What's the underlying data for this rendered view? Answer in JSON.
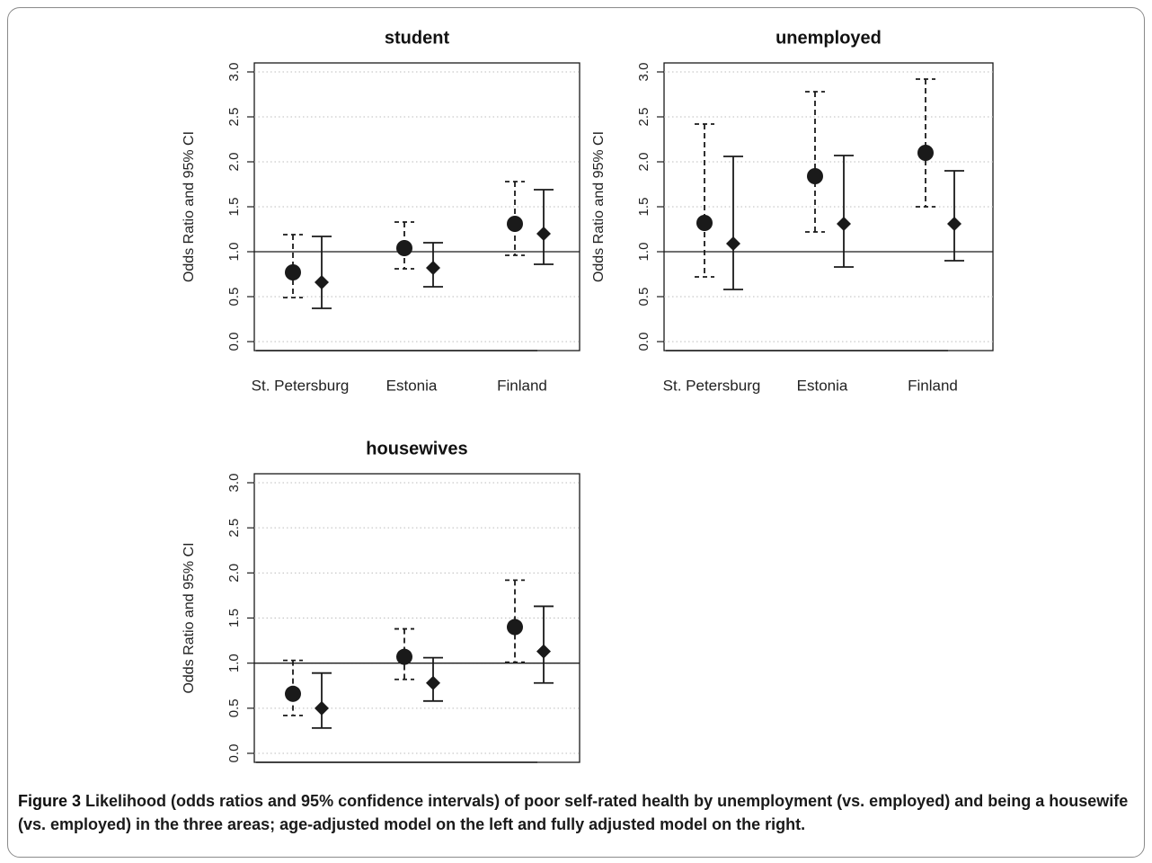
{
  "caption": {
    "label": "Figure 3",
    "text": "Likelihood (odds ratios and 95% confidence intervals) of poor self-rated health by unemployment (vs. employed) and being a housewife (vs. employed) in the three areas; age-adjusted model on the left and fully adjusted model on the right."
  },
  "colors": {
    "ink": "#1a1a1a",
    "grid": "#bdbdbd",
    "frame": "#8a8a8a"
  },
  "chart_data": [
    {
      "type": "scatter",
      "title": "student",
      "ylabel": "Odds Ratio and 95% CI",
      "categories": [
        "St. Petersburg",
        "Estonia",
        "Finland"
      ],
      "ylim": [
        0,
        3
      ],
      "yticks": [
        "0.0",
        "0.5",
        "1.0",
        "1.5",
        "2.0",
        "2.5",
        "3.0"
      ],
      "reference_line": 1.0,
      "grid": "horizontal dotted",
      "series": [
        {
          "marker": "circle",
          "ci_style": "dashed",
          "values": [
            0.77,
            1.04,
            1.31
          ],
          "lower": [
            0.49,
            0.81,
            0.96
          ],
          "upper": [
            1.19,
            1.33,
            1.78
          ]
        },
        {
          "marker": "diamond",
          "ci_style": "solid",
          "values": [
            0.66,
            0.82,
            1.2
          ],
          "lower": [
            0.37,
            0.61,
            0.86
          ],
          "upper": [
            1.17,
            1.1,
            1.69
          ]
        }
      ]
    },
    {
      "type": "scatter",
      "title": "unemployed",
      "ylabel": "Odds Ratio and 95% CI",
      "categories": [
        "St. Petersburg",
        "Estonia",
        "Finland"
      ],
      "ylim": [
        0,
        3
      ],
      "yticks": [
        "0.0",
        "0.5",
        "1.0",
        "1.5",
        "2.0",
        "2.5",
        "3.0"
      ],
      "reference_line": 1.0,
      "grid": "horizontal dotted",
      "series": [
        {
          "marker": "circle",
          "ci_style": "dashed",
          "values": [
            1.32,
            1.84,
            2.1
          ],
          "lower": [
            0.72,
            1.22,
            1.5
          ],
          "upper": [
            2.42,
            2.78,
            2.92
          ]
        },
        {
          "marker": "diamond",
          "ci_style": "solid",
          "values": [
            1.09,
            1.31,
            1.31
          ],
          "lower": [
            0.58,
            0.83,
            0.9
          ],
          "upper": [
            2.06,
            2.07,
            1.9
          ]
        }
      ]
    },
    {
      "type": "scatter",
      "title": "housewives",
      "ylabel": "Odds Ratio and 95% CI",
      "categories": [
        "St. Petersburg",
        "Estonia",
        "Finland"
      ],
      "ylim": [
        0,
        3
      ],
      "yticks": [
        "0.0",
        "0.5",
        "1.0",
        "1.5",
        "2.0",
        "2.5",
        "3.0"
      ],
      "reference_line": 1.0,
      "grid": "horizontal dotted",
      "series": [
        {
          "marker": "circle",
          "ci_style": "dashed",
          "values": [
            0.66,
            1.07,
            1.4
          ],
          "lower": [
            0.42,
            0.82,
            1.01
          ],
          "upper": [
            1.03,
            1.38,
            1.92
          ]
        },
        {
          "marker": "diamond",
          "ci_style": "solid",
          "values": [
            0.5,
            0.78,
            1.13
          ],
          "lower": [
            0.28,
            0.58,
            0.78
          ],
          "upper": [
            0.89,
            1.06,
            1.63
          ]
        }
      ]
    }
  ]
}
